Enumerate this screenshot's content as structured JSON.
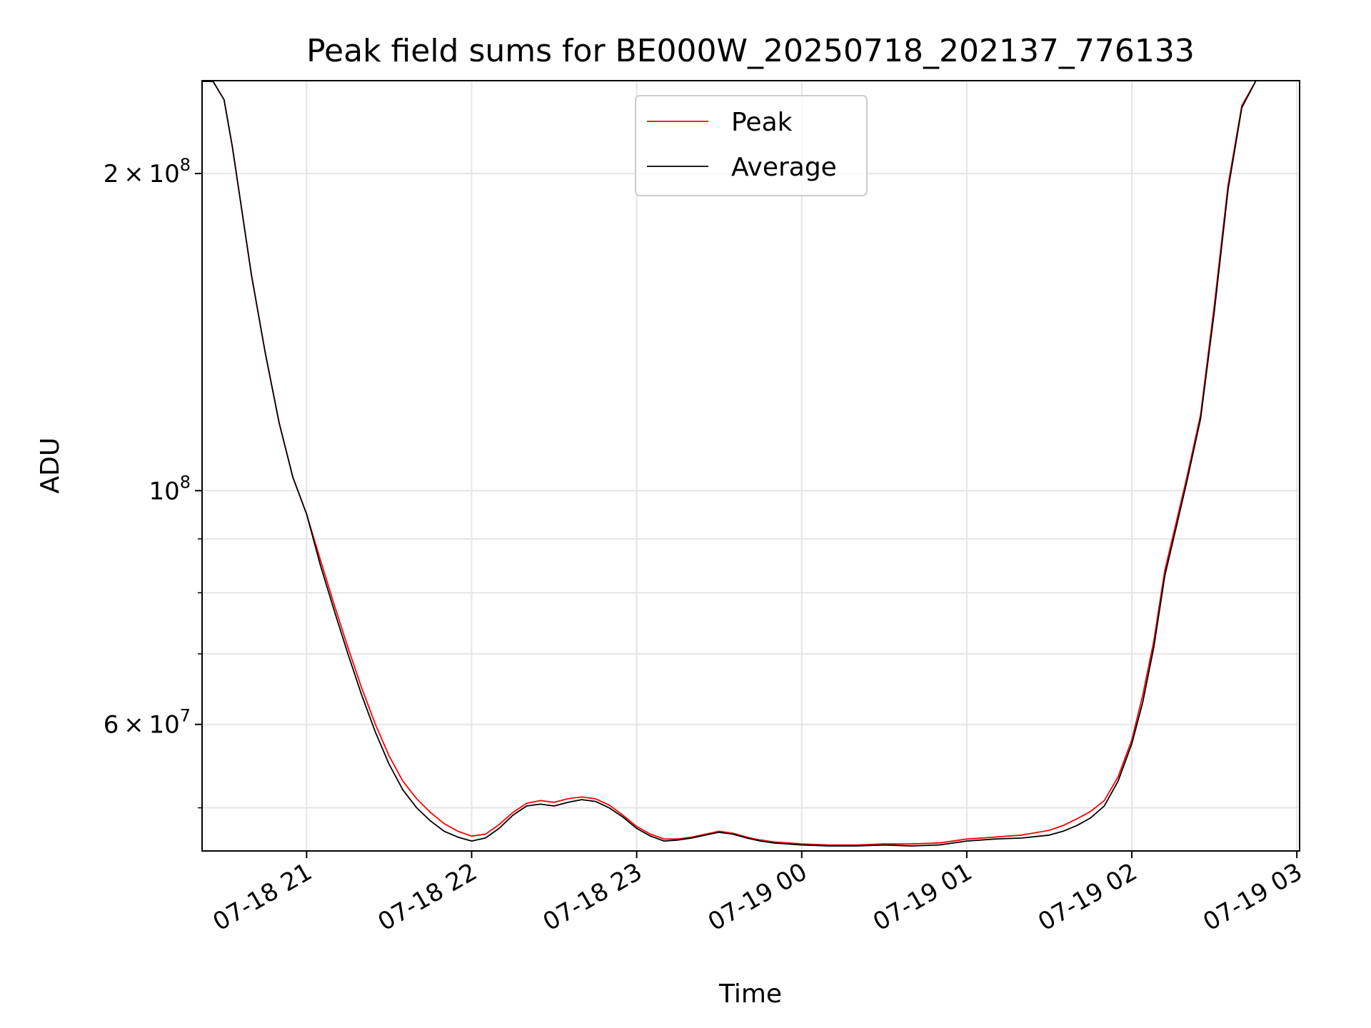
{
  "chart_data": {
    "type": "line",
    "title": "Peak field sums for BE000W_20250718_202137_776133",
    "xlabel": "Time",
    "ylabel": "ADU",
    "y_scale": "log",
    "ylim": [
      45500000,
      245000000
    ],
    "xlim": [
      "07-18 20:22",
      "07-19 03:01"
    ],
    "x_tick_labels": [
      "07-18 21",
      "07-18 22",
      "07-18 23",
      "07-19 00",
      "07-19 01",
      "07-19 02",
      "07-19 03"
    ],
    "x_tick_values": [
      "07-18 21:00",
      "07-18 22:00",
      "07-18 23:00",
      "07-19 00:00",
      "07-19 01:00",
      "07-19 02:00",
      "07-19 03:00"
    ],
    "y_major_ticks": [
      {
        "value": 200000000,
        "mantissa": "2",
        "exponent": "8"
      },
      {
        "value": 100000000,
        "mantissa": "",
        "exponent": "8"
      },
      {
        "value": 60000000,
        "mantissa": "6",
        "exponent": "7"
      }
    ],
    "y_minor_ticks": [
      50000000,
      70000000,
      80000000,
      90000000
    ],
    "grid": true,
    "legend_position": "top-center",
    "series": [
      {
        "name": "Peak",
        "color": "#ff0000",
        "x": [
          "07-18 20:22",
          "07-18 20:26",
          "07-18 20:30",
          "07-18 20:33",
          "07-18 20:36",
          "07-18 20:40",
          "07-18 20:45",
          "07-18 20:50",
          "07-18 20:55",
          "07-18 21:00",
          "07-18 21:05",
          "07-18 21:10",
          "07-18 21:15",
          "07-18 21:20",
          "07-18 21:25",
          "07-18 21:30",
          "07-18 21:35",
          "07-18 21:40",
          "07-18 21:45",
          "07-18 21:50",
          "07-18 21:55",
          "07-18 22:00",
          "07-18 22:05",
          "07-18 22:10",
          "07-18 22:15",
          "07-18 22:20",
          "07-18 22:25",
          "07-18 22:30",
          "07-18 22:35",
          "07-18 22:40",
          "07-18 22:45",
          "07-18 22:50",
          "07-18 22:55",
          "07-18 23:00",
          "07-18 23:05",
          "07-18 23:10",
          "07-18 23:15",
          "07-18 23:20",
          "07-18 23:25",
          "07-18 23:30",
          "07-18 23:35",
          "07-18 23:40",
          "07-18 23:45",
          "07-18 23:50",
          "07-18 23:55",
          "07-19 00:00",
          "07-19 00:10",
          "07-19 00:20",
          "07-19 00:30",
          "07-19 00:40",
          "07-19 00:50",
          "07-19 01:00",
          "07-19 01:10",
          "07-19 01:20",
          "07-19 01:30",
          "07-19 01:35",
          "07-19 01:40",
          "07-19 01:45",
          "07-19 01:50",
          "07-19 01:55",
          "07-19 02:00",
          "07-19 02:04",
          "07-19 02:08",
          "07-19 02:12",
          "07-19 02:16",
          "07-19 02:20",
          "07-19 02:25",
          "07-19 02:30",
          "07-19 02:35",
          "07-19 02:40",
          "07-19 02:45"
        ],
        "y": [
          245000000,
          245000000,
          235000000,
          212000000,
          188000000,
          160000000,
          135000000,
          116000000,
          103000000,
          95000000,
          86000000,
          78000000,
          71000000,
          65000000,
          60000000,
          56000000,
          53000000,
          51000000,
          49500000,
          48300000,
          47500000,
          47000000,
          47200000,
          48200000,
          49500000,
          50500000,
          50800000,
          50600000,
          51000000,
          51200000,
          51000000,
          50300000,
          49200000,
          48000000,
          47200000,
          46700000,
          46700000,
          46900000,
          47200000,
          47500000,
          47300000,
          46900000,
          46600000,
          46400000,
          46300000,
          46200000,
          46100000,
          46100000,
          46200000,
          46200000,
          46300000,
          46700000,
          46900000,
          47100000,
          47600000,
          48100000,
          48800000,
          49600000,
          50800000,
          53500000,
          58000000,
          64000000,
          72000000,
          84000000,
          93000000,
          103000000,
          118000000,
          150000000,
          195000000,
          232000000,
          245000000
        ]
      },
      {
        "name": "Average",
        "color": "#000000",
        "x": [
          "07-18 20:22",
          "07-18 20:26",
          "07-18 20:30",
          "07-18 20:33",
          "07-18 20:36",
          "07-18 20:40",
          "07-18 20:45",
          "07-18 20:50",
          "07-18 20:55",
          "07-18 21:00",
          "07-18 21:05",
          "07-18 21:10",
          "07-18 21:15",
          "07-18 21:20",
          "07-18 21:25",
          "07-18 21:30",
          "07-18 21:35",
          "07-18 21:40",
          "07-18 21:45",
          "07-18 21:50",
          "07-18 21:55",
          "07-18 22:00",
          "07-18 22:05",
          "07-18 22:10",
          "07-18 22:15",
          "07-18 22:20",
          "07-18 22:25",
          "07-18 22:30",
          "07-18 22:35",
          "07-18 22:40",
          "07-18 22:45",
          "07-18 22:50",
          "07-18 22:55",
          "07-18 23:00",
          "07-18 23:05",
          "07-18 23:10",
          "07-18 23:15",
          "07-18 23:20",
          "07-18 23:25",
          "07-18 23:30",
          "07-18 23:35",
          "07-18 23:40",
          "07-18 23:45",
          "07-18 23:50",
          "07-18 23:55",
          "07-19 00:00",
          "07-19 00:10",
          "07-19 00:20",
          "07-19 00:30",
          "07-19 00:40",
          "07-19 00:50",
          "07-19 01:00",
          "07-19 01:10",
          "07-19 01:20",
          "07-19 01:30",
          "07-19 01:35",
          "07-19 01:40",
          "07-19 01:45",
          "07-19 01:50",
          "07-19 01:55",
          "07-19 02:00",
          "07-19 02:04",
          "07-19 02:08",
          "07-19 02:12",
          "07-19 02:16",
          "07-19 02:20",
          "07-19 02:25",
          "07-19 02:30",
          "07-19 02:35",
          "07-19 02:40",
          "07-19 02:45"
        ],
        "y": [
          245000000,
          245000000,
          235000000,
          212000000,
          188000000,
          160000000,
          135000000,
          116000000,
          103000000,
          95000000,
          85000000,
          77000000,
          70000000,
          64000000,
          59000000,
          55000000,
          52000000,
          50000000,
          48600000,
          47500000,
          46900000,
          46500000,
          46800000,
          47800000,
          49200000,
          50200000,
          50400000,
          50200000,
          50600000,
          50900000,
          50700000,
          50000000,
          49000000,
          47800000,
          47000000,
          46500000,
          46600000,
          46800000,
          47100000,
          47400000,
          47200000,
          46800000,
          46500000,
          46300000,
          46200000,
          46100000,
          46000000,
          46000000,
          46100000,
          46000000,
          46100000,
          46500000,
          46700000,
          46800000,
          47100000,
          47500000,
          48100000,
          48900000,
          50200000,
          53000000,
          57500000,
          63000000,
          71000000,
          83000000,
          92000000,
          102000000,
          117000000,
          148000000,
          193000000,
          231000000,
          245000000
        ]
      }
    ]
  }
}
